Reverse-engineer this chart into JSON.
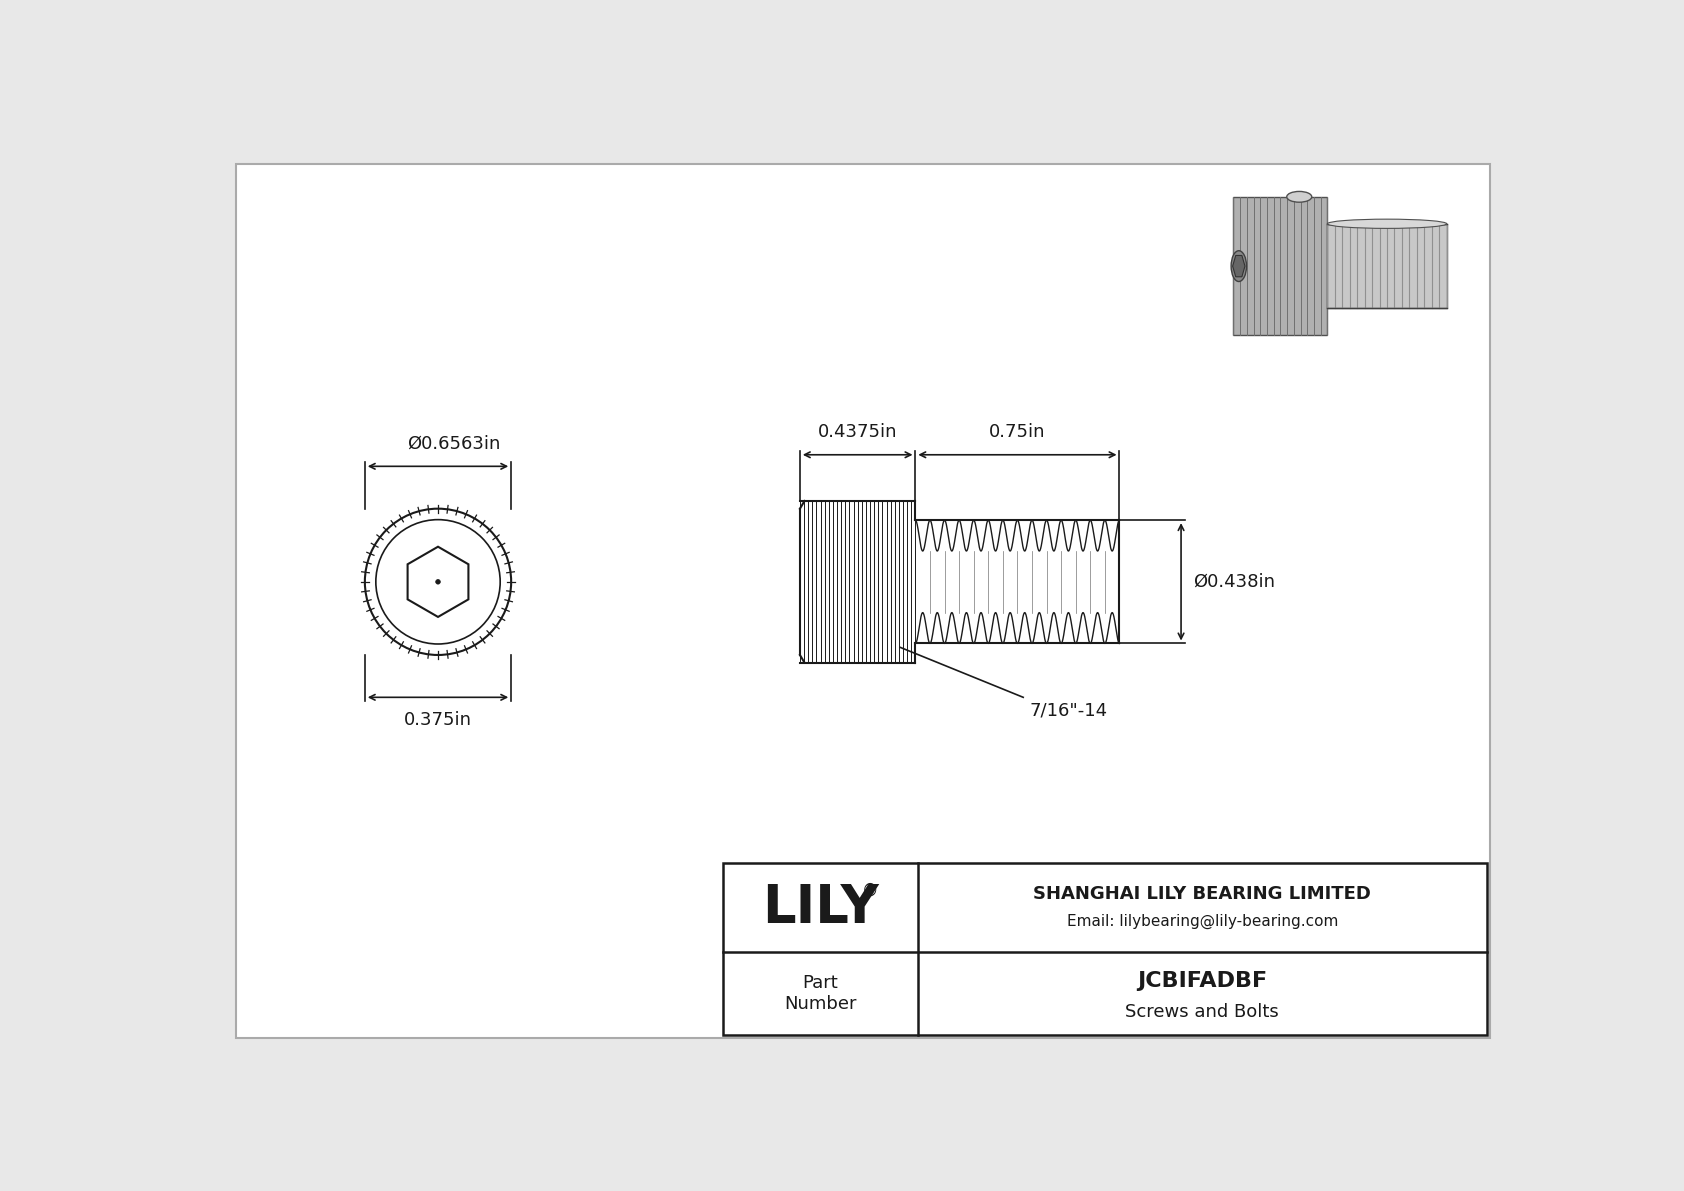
{
  "bg_color": "#e8e8e8",
  "paper_color": "#ffffff",
  "line_color": "#1a1a1a",
  "dim_color": "#1a1a1a",
  "title": "JCBIFADBF",
  "subtitle": "Screws and Bolts",
  "company": "SHANGHAI LILY BEARING LIMITED",
  "email": "Email: lilybearing@lily-bearing.com",
  "part_label": "Part\nNumber",
  "logo": "LILY",
  "logo_reg": "®",
  "dim_head_diameter": "Ø0.6563in",
  "dim_head_length": "0.4375in",
  "dim_thread_length": "0.75in",
  "dim_thread_diameter": "Ø0.438in",
  "dim_bottom_width": "0.375in",
  "dim_thread_pitch": "7/16\"-14"
}
